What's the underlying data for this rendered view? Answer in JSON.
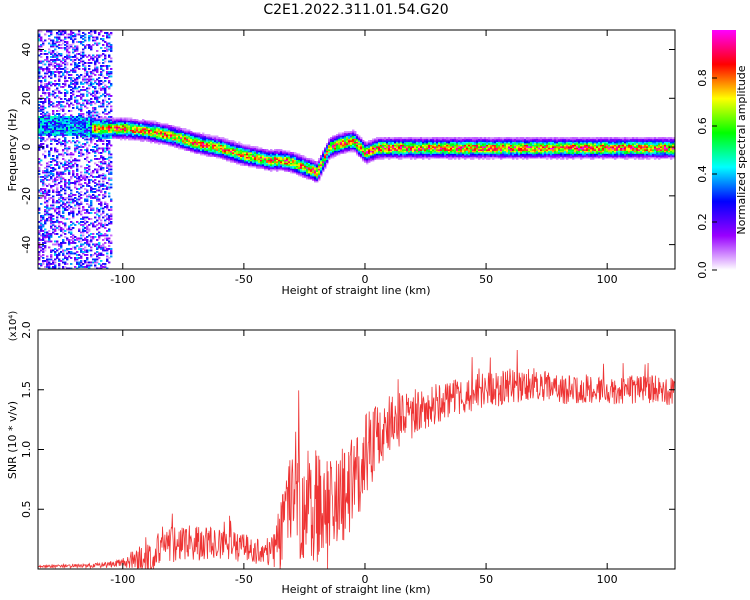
{
  "title": "C2E1.2022.311.01.54.G20",
  "chart_data": [
    {
      "type": "heatmap",
      "name": "spectrogram",
      "xlabel": "Height of straight line (km)",
      "ylabel": "Frequency (Hz)",
      "xlim": [
        -135,
        128
      ],
      "ylim": [
        -50,
        48
      ],
      "xticks": [
        -100,
        -50,
        0,
        50,
        100
      ],
      "yticks": [
        -40,
        -20,
        0,
        20,
        40
      ],
      "colorbar": {
        "label": "Normalized spectral amplitude",
        "range": [
          0.0,
          1.0
        ],
        "ticks": [
          0.0,
          0.2,
          0.4,
          0.6,
          0.8
        ],
        "colors": [
          "#ffffff",
          "#9900ff",
          "#0000ff",
          "#00ffff",
          "#00ff00",
          "#ffff00",
          "#ff0000",
          "#ff00ff"
        ]
      },
      "ridge": {
        "x": [
          -130,
          -120,
          -110,
          -100,
          -90,
          -80,
          -70,
          -60,
          -50,
          -45,
          -40,
          -35,
          -30,
          -25,
          -20,
          -15,
          -10,
          -5,
          0,
          5,
          10,
          20,
          40,
          60,
          80,
          100,
          128
        ],
        "y": [
          9,
          9,
          8,
          8,
          7,
          5,
          2,
          0,
          -3,
          -4,
          -5,
          -5,
          -6,
          -8,
          -10,
          0,
          2,
          3,
          -2,
          0,
          0,
          0,
          0,
          0,
          0,
          0,
          0
        ]
      },
      "noise_band_x": [
        -135,
        -105
      ]
    },
    {
      "type": "line",
      "name": "snr",
      "xlabel": "Height of straight line (km)",
      "ylabel": "SNR (10 * v/v)",
      "y_multiplier": "(x10⁴)",
      "xlim": [
        -135,
        128
      ],
      "ylim": [
        0,
        2.0
      ],
      "xticks": [
        -100,
        -50,
        0,
        50,
        100
      ],
      "yticks": [
        0.5,
        1.0,
        1.5,
        2.0
      ],
      "color": "#ee3333",
      "trend": {
        "x": [
          -135,
          -110,
          -100,
          -90,
          -80,
          -70,
          -60,
          -50,
          -40,
          -35,
          -30,
          -25,
          -20,
          -15,
          -10,
          -5,
          0,
          5,
          10,
          15,
          20,
          30,
          40,
          50,
          60,
          70,
          80,
          90,
          100,
          110,
          120,
          128
        ],
        "y": [
          0.02,
          0.03,
          0.05,
          0.1,
          0.2,
          0.22,
          0.2,
          0.18,
          0.12,
          0.3,
          0.5,
          0.55,
          0.5,
          0.45,
          0.55,
          0.7,
          0.95,
          1.1,
          1.2,
          1.25,
          1.3,
          1.4,
          1.45,
          1.5,
          1.52,
          1.55,
          1.5,
          1.5,
          1.48,
          1.5,
          1.5,
          1.48
        ]
      },
      "noise_amp": {
        "x": [
          -135,
          -110,
          -100,
          -90,
          -70,
          -50,
          -40,
          -30,
          -20,
          -10,
          0,
          10,
          20,
          40,
          60,
          80,
          100,
          128
        ],
        "y": [
          0.01,
          0.02,
          0.04,
          0.15,
          0.15,
          0.12,
          0.1,
          0.5,
          0.5,
          0.45,
          0.35,
          0.25,
          0.2,
          0.15,
          0.15,
          0.12,
          0.12,
          0.12
        ]
      }
    }
  ]
}
